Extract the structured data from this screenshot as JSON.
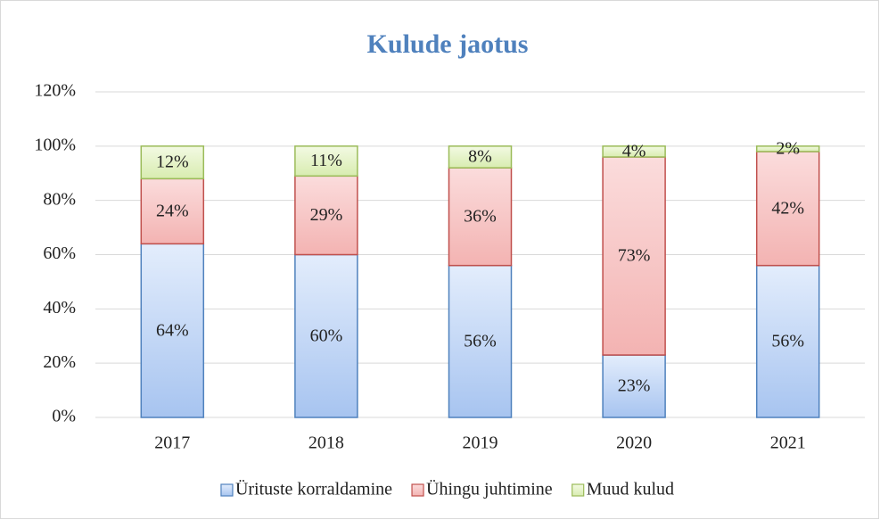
{
  "chart_data": {
    "type": "stacked_bar",
    "title": "Kulude jaotus",
    "categories": [
      "2017",
      "2018",
      "2019",
      "2020",
      "2021"
    ],
    "series": [
      {
        "name": "Ürituste korraldamine",
        "color": "#4f81bd",
        "values": [
          64,
          60,
          56,
          23,
          56
        ],
        "value_labels": [
          "64%",
          "60%",
          "56%",
          "23%",
          "56%"
        ]
      },
      {
        "name": "Ühingu juhtimine",
        "color": "#c0504d",
        "values": [
          24,
          29,
          36,
          73,
          42
        ],
        "value_labels": [
          "24%",
          "29%",
          "36%",
          "73%",
          "42%"
        ]
      },
      {
        "name": "Muud kulud",
        "color": "#9bbb59",
        "values": [
          12,
          11,
          8,
          4,
          2
        ],
        "value_labels": [
          "12%",
          "11%",
          "8%",
          "4%",
          "2%"
        ]
      }
    ],
    "ylim": [
      0,
      120
    ],
    "yticks": [
      {
        "value": 0,
        "label": "0%"
      },
      {
        "value": 20,
        "label": "20%"
      },
      {
        "value": 40,
        "label": "40%"
      },
      {
        "value": 60,
        "label": "60%"
      },
      {
        "value": 80,
        "label": "80%"
      },
      {
        "value": 100,
        "label": "100%"
      },
      {
        "value": 120,
        "label": "120%"
      }
    ],
    "grid": true,
    "legend": "bottom"
  }
}
